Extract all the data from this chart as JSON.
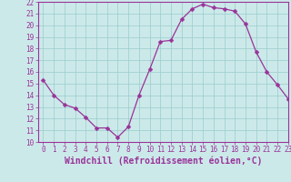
{
  "x": [
    0,
    1,
    2,
    3,
    4,
    5,
    6,
    7,
    8,
    9,
    10,
    11,
    12,
    13,
    14,
    15,
    16,
    17,
    18,
    19,
    20,
    21,
    22,
    23
  ],
  "y": [
    15.3,
    14.0,
    13.2,
    12.9,
    12.1,
    11.2,
    11.2,
    10.4,
    11.3,
    14.0,
    16.2,
    18.6,
    18.7,
    20.5,
    21.4,
    21.8,
    21.5,
    21.4,
    21.2,
    20.1,
    17.7,
    16.0,
    14.9,
    13.7
  ],
  "line_color": "#993399",
  "marker": "D",
  "marker_size": 2.5,
  "bg_color": "#cce9e9",
  "grid_color": "#99cccc",
  "xlabel": "Windchill (Refroidissement éolien,°C)",
  "ylim": [
    10,
    22
  ],
  "xlim": [
    -0.5,
    23
  ],
  "yticks": [
    10,
    11,
    12,
    13,
    14,
    15,
    16,
    17,
    18,
    19,
    20,
    21,
    22
  ],
  "xticks": [
    0,
    1,
    2,
    3,
    4,
    5,
    6,
    7,
    8,
    9,
    10,
    11,
    12,
    13,
    14,
    15,
    16,
    17,
    18,
    19,
    20,
    21,
    22,
    23
  ],
  "tick_fontsize": 5.5,
  "xlabel_fontsize": 7,
  "spine_color": "#993399",
  "axis_bg": "#cce9e9"
}
